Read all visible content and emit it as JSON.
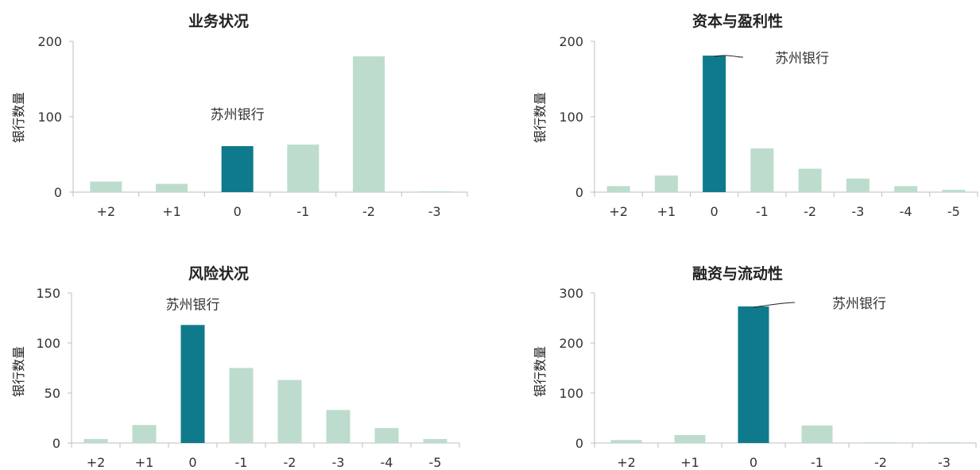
{
  "colors": {
    "highlight": "#0f7a8c",
    "other": "#bddccd",
    "axis": "#bfbfbf"
  },
  "chart_data": [
    {
      "type": "bar",
      "title": "业务状况",
      "ylabel": "银行数量",
      "categories": [
        "+2",
        "+1",
        "0",
        "-1",
        "-2",
        "-3"
      ],
      "values": [
        14,
        11,
        61,
        63,
        180,
        1
      ],
      "highlight_index": 2,
      "annotation": "苏州银行",
      "ylim": [
        0,
        200
      ],
      "yticks": [
        0,
        100,
        200
      ]
    },
    {
      "type": "bar",
      "title": "资本与盈利性",
      "ylabel": "银行数量",
      "categories": [
        "+2",
        "+1",
        "0",
        "-1",
        "-2",
        "-3",
        "-4",
        "-5"
      ],
      "values": [
        8,
        22,
        181,
        58,
        31,
        18,
        8,
        3
      ],
      "highlight_index": 2,
      "annotation": "苏州银行",
      "ylim": [
        0,
        200
      ],
      "yticks": [
        0,
        100,
        200
      ]
    },
    {
      "type": "bar",
      "title": "风险状况",
      "ylabel": "银行数量",
      "categories": [
        "+2",
        "+1",
        "0",
        "-1",
        "-2",
        "-3",
        "-4",
        "-5"
      ],
      "values": [
        4,
        18,
        118,
        75,
        63,
        33,
        15,
        4
      ],
      "highlight_index": 2,
      "annotation": "苏州银行",
      "ylim": [
        0,
        150
      ],
      "yticks": [
        0,
        50,
        100,
        150
      ]
    },
    {
      "type": "bar",
      "title": "融资与流动性",
      "ylabel": "银行数量",
      "categories": [
        "+2",
        "+1",
        "0",
        "-1",
        "-2",
        "-3"
      ],
      "values": [
        6,
        16,
        273,
        35,
        1,
        1
      ],
      "highlight_index": 2,
      "annotation": "苏州银行",
      "ylim": [
        0,
        300
      ],
      "yticks": [
        0,
        100,
        200,
        300
      ]
    }
  ]
}
